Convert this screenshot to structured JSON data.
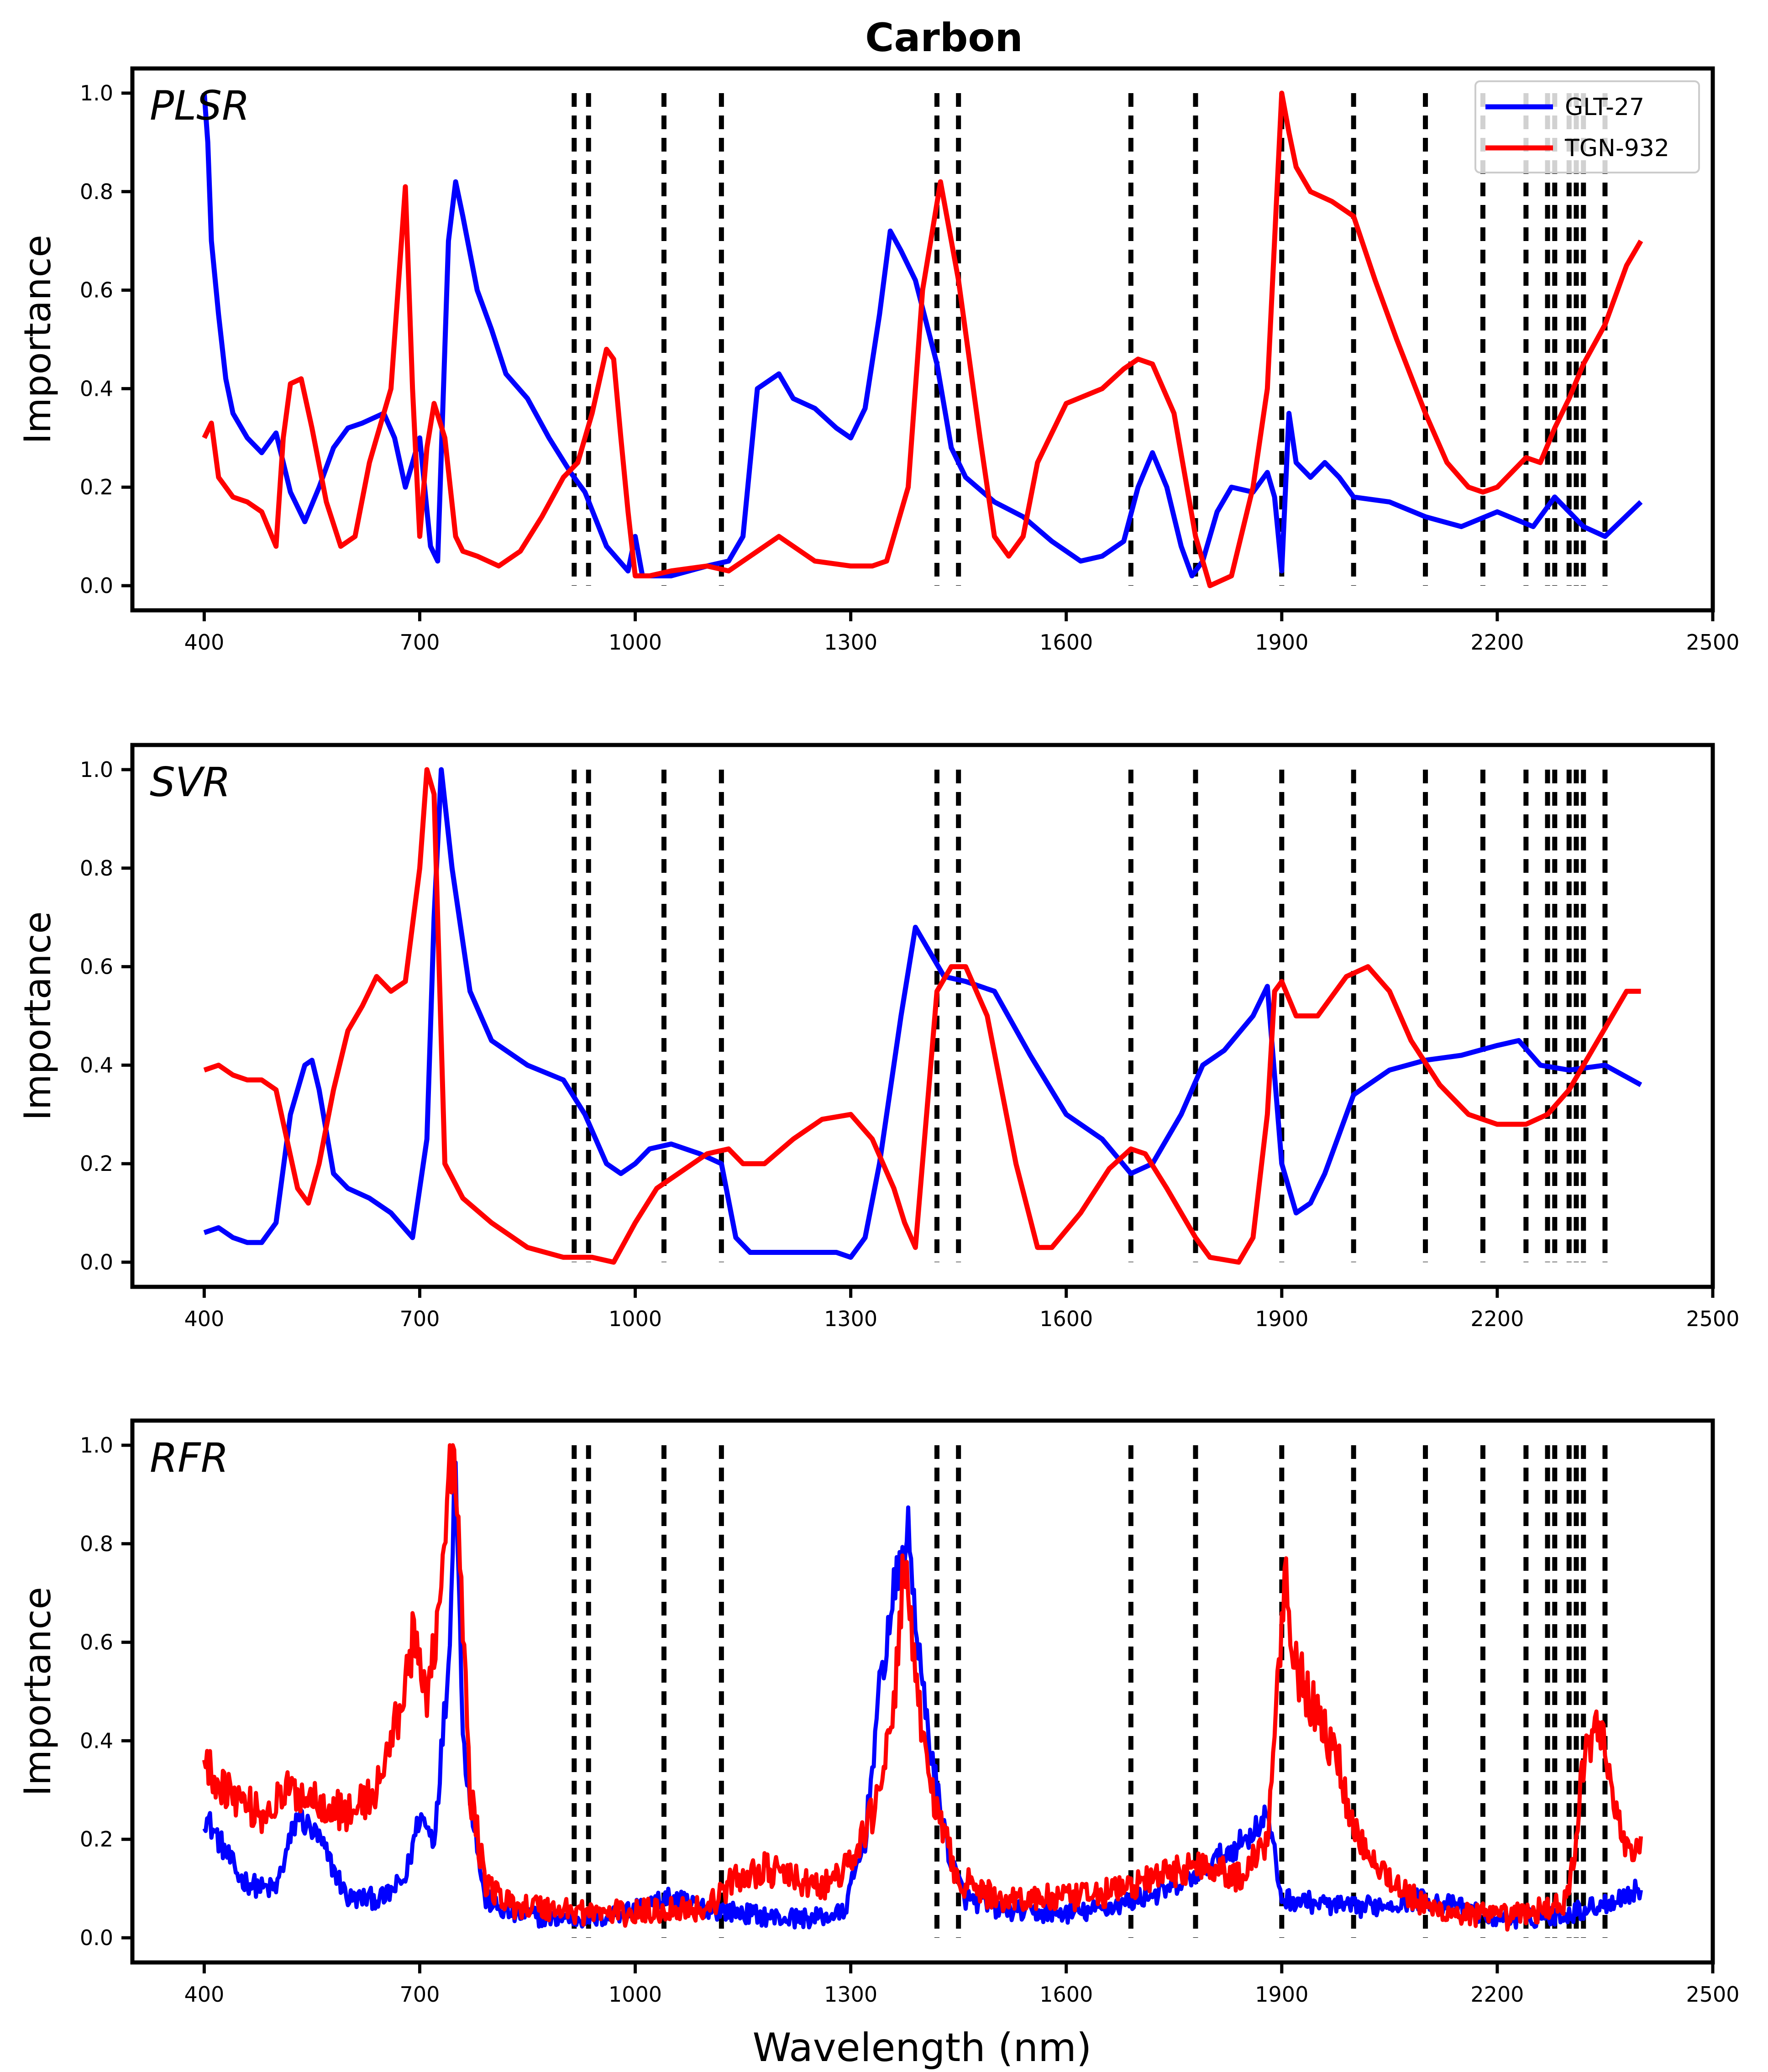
{
  "chart_data": {
    "title": "Carbon",
    "xlabel": "Wavelength (nm)",
    "ylabel": "Importance",
    "xlim": [
      300,
      2500
    ],
    "ylim": [
      -0.05,
      1.05
    ],
    "xticks": [
      400,
      700,
      1000,
      1300,
      1600,
      1900,
      2200,
      2500
    ],
    "yticks": [
      0.0,
      0.2,
      0.4,
      0.6,
      0.8,
      1.0
    ],
    "ytick_labels": [
      "0.0",
      "0.2",
      "0.4",
      "0.6",
      "0.8",
      "1.0"
    ],
    "vlines": [
      915,
      935,
      1040,
      1120,
      1420,
      1450,
      1690,
      1780,
      1900,
      2000,
      2100,
      2180,
      2240,
      2270,
      2280,
      2300,
      2310,
      2320,
      2350
    ],
    "legend": {
      "placement": "top-right",
      "entries": [
        {
          "name": "GLT-27",
          "color": "#0000ff"
        },
        {
          "name": "TGN-932",
          "color": "#ff0000"
        }
      ]
    },
    "panels": [
      {
        "label": "PLSR",
        "show_legend": true,
        "series": [
          {
            "name": "GLT-27",
            "color": "#0000ff",
            "x": [
              400,
              405,
              410,
              420,
              430,
              440,
              460,
              480,
              500,
              510,
              520,
              540,
              560,
              580,
              600,
              620,
              650,
              665,
              680,
              700,
              715,
              725,
              740,
              750,
              760,
              780,
              800,
              820,
              850,
              880,
              910,
              930,
              960,
              990,
              1000,
              1010,
              1050,
              1100,
              1130,
              1150,
              1170,
              1200,
              1220,
              1250,
              1280,
              1300,
              1320,
              1340,
              1355,
              1370,
              1390,
              1420,
              1440,
              1460,
              1500,
              1540,
              1580,
              1620,
              1650,
              1680,
              1700,
              1720,
              1740,
              1760,
              1775,
              1790,
              1810,
              1830,
              1860,
              1880,
              1890,
              1900,
              1910,
              1920,
              1940,
              1960,
              1980,
              2000,
              2050,
              2100,
              2150,
              2200,
              2250,
              2280,
              2300,
              2320,
              2350,
              2400
            ],
            "y": [
              1.0,
              0.9,
              0.7,
              0.55,
              0.42,
              0.35,
              0.3,
              0.27,
              0.31,
              0.25,
              0.19,
              0.13,
              0.2,
              0.28,
              0.32,
              0.33,
              0.35,
              0.3,
              0.2,
              0.3,
              0.08,
              0.05,
              0.7,
              0.82,
              0.75,
              0.6,
              0.52,
              0.43,
              0.38,
              0.3,
              0.23,
              0.19,
              0.08,
              0.03,
              0.1,
              0.02,
              0.02,
              0.04,
              0.05,
              0.1,
              0.4,
              0.43,
              0.38,
              0.36,
              0.32,
              0.3,
              0.36,
              0.55,
              0.72,
              0.68,
              0.62,
              0.45,
              0.28,
              0.22,
              0.17,
              0.14,
              0.09,
              0.05,
              0.06,
              0.09,
              0.2,
              0.27,
              0.2,
              0.08,
              0.02,
              0.05,
              0.15,
              0.2,
              0.19,
              0.23,
              0.18,
              0.03,
              0.35,
              0.25,
              0.22,
              0.25,
              0.22,
              0.18,
              0.17,
              0.14,
              0.12,
              0.15,
              0.12,
              0.18,
              0.15,
              0.12,
              0.1,
              0.17
            ]
          },
          {
            "name": "TGN-932",
            "color": "#ff0000",
            "x": [
              400,
              410,
              420,
              440,
              460,
              480,
              500,
              510,
              520,
              535,
              550,
              570,
              590,
              610,
              630,
              660,
              680,
              690,
              700,
              710,
              720,
              735,
              750,
              760,
              780,
              810,
              840,
              870,
              900,
              920,
              940,
              960,
              970,
              980,
              990,
              1000,
              1010,
              1020,
              1050,
              1100,
              1130,
              1150,
              1200,
              1250,
              1300,
              1330,
              1350,
              1380,
              1400,
              1425,
              1450,
              1480,
              1500,
              1520,
              1540,
              1560,
              1600,
              1650,
              1680,
              1700,
              1720,
              1750,
              1780,
              1800,
              1830,
              1860,
              1880,
              1900,
              1910,
              1920,
              1940,
              1970,
              2000,
              2030,
              2060,
              2100,
              2130,
              2160,
              2180,
              2200,
              2220,
              2240,
              2260,
              2280,
              2300,
              2320,
              2350,
              2380,
              2400
            ],
            "y": [
              0.3,
              0.33,
              0.22,
              0.18,
              0.17,
              0.15,
              0.08,
              0.3,
              0.41,
              0.42,
              0.32,
              0.17,
              0.08,
              0.1,
              0.25,
              0.4,
              0.81,
              0.4,
              0.1,
              0.28,
              0.37,
              0.3,
              0.1,
              0.07,
              0.06,
              0.04,
              0.07,
              0.14,
              0.22,
              0.25,
              0.35,
              0.48,
              0.46,
              0.3,
              0.15,
              0.02,
              0.02,
              0.02,
              0.03,
              0.04,
              0.03,
              0.05,
              0.1,
              0.05,
              0.04,
              0.04,
              0.05,
              0.2,
              0.6,
              0.82,
              0.62,
              0.3,
              0.1,
              0.06,
              0.1,
              0.25,
              0.37,
              0.4,
              0.44,
              0.46,
              0.45,
              0.35,
              0.1,
              0.0,
              0.02,
              0.2,
              0.4,
              1.0,
              0.92,
              0.85,
              0.8,
              0.78,
              0.75,
              0.62,
              0.5,
              0.35,
              0.25,
              0.2,
              0.19,
              0.2,
              0.23,
              0.26,
              0.25,
              0.32,
              0.38,
              0.45,
              0.53,
              0.65,
              0.7
            ]
          }
        ]
      },
      {
        "label": "SVR",
        "show_legend": false,
        "series": [
          {
            "name": "GLT-27",
            "color": "#0000ff",
            "x": [
              400,
              420,
              440,
              460,
              480,
              500,
              520,
              540,
              550,
              560,
              580,
              600,
              630,
              660,
              690,
              710,
              720,
              730,
              745,
              770,
              800,
              850,
              900,
              930,
              960,
              980,
              1000,
              1020,
              1050,
              1090,
              1120,
              1140,
              1160,
              1200,
              1250,
              1280,
              1300,
              1320,
              1340,
              1370,
              1390,
              1410,
              1430,
              1460,
              1500,
              1550,
              1600,
              1650,
              1690,
              1720,
              1760,
              1790,
              1820,
              1860,
              1880,
              1900,
              1920,
              1940,
              1960,
              2000,
              2050,
              2100,
              2150,
              2200,
              2230,
              2260,
              2300,
              2350,
              2400
            ],
            "y": [
              0.06,
              0.07,
              0.05,
              0.04,
              0.04,
              0.08,
              0.3,
              0.4,
              0.41,
              0.35,
              0.18,
              0.15,
              0.13,
              0.1,
              0.05,
              0.25,
              0.7,
              1.0,
              0.8,
              0.55,
              0.45,
              0.4,
              0.37,
              0.3,
              0.2,
              0.18,
              0.2,
              0.23,
              0.24,
              0.22,
              0.2,
              0.05,
              0.02,
              0.02,
              0.02,
              0.02,
              0.01,
              0.05,
              0.2,
              0.5,
              0.68,
              0.63,
              0.58,
              0.57,
              0.55,
              0.42,
              0.3,
              0.25,
              0.18,
              0.2,
              0.3,
              0.4,
              0.43,
              0.5,
              0.56,
              0.2,
              0.1,
              0.12,
              0.18,
              0.34,
              0.39,
              0.41,
              0.42,
              0.44,
              0.45,
              0.4,
              0.39,
              0.4,
              0.36
            ]
          },
          {
            "name": "TGN-932",
            "color": "#ff0000",
            "x": [
              400,
              420,
              440,
              460,
              480,
              500,
              515,
              530,
              545,
              560,
              580,
              600,
              620,
              640,
              660,
              680,
              700,
              710,
              720,
              735,
              760,
              800,
              850,
              900,
              940,
              970,
              1000,
              1030,
              1060,
              1100,
              1130,
              1150,
              1180,
              1220,
              1260,
              1300,
              1330,
              1360,
              1375,
              1390,
              1420,
              1440,
              1460,
              1490,
              1530,
              1560,
              1580,
              1620,
              1660,
              1690,
              1710,
              1740,
              1780,
              1800,
              1840,
              1860,
              1880,
              1890,
              1900,
              1920,
              1950,
              1990,
              2020,
              2050,
              2080,
              2120,
              2160,
              2200,
              2240,
              2270,
              2300,
              2340,
              2380,
              2400
            ],
            "y": [
              0.39,
              0.4,
              0.38,
              0.37,
              0.37,
              0.35,
              0.25,
              0.15,
              0.12,
              0.2,
              0.35,
              0.47,
              0.52,
              0.58,
              0.55,
              0.57,
              0.8,
              1.0,
              0.95,
              0.2,
              0.13,
              0.08,
              0.03,
              0.01,
              0.01,
              0.0,
              0.08,
              0.15,
              0.18,
              0.22,
              0.23,
              0.2,
              0.2,
              0.25,
              0.29,
              0.3,
              0.25,
              0.15,
              0.08,
              0.03,
              0.55,
              0.6,
              0.6,
              0.5,
              0.2,
              0.03,
              0.03,
              0.1,
              0.19,
              0.23,
              0.22,
              0.15,
              0.05,
              0.01,
              0.0,
              0.05,
              0.3,
              0.55,
              0.57,
              0.5,
              0.5,
              0.58,
              0.6,
              0.55,
              0.45,
              0.36,
              0.3,
              0.28,
              0.28,
              0.3,
              0.35,
              0.45,
              0.55,
              0.55
            ]
          }
        ]
      },
      {
        "label": "RFR",
        "show_legend": false,
        "noise": [
          0.045,
          0.06
        ],
        "series": [
          {
            "name": "GLT-27",
            "color": "#0000ff",
            "x": [
              400,
              420,
              450,
              480,
              500,
              530,
              560,
              600,
              650,
              680,
              700,
              720,
              740,
              750,
              760,
              790,
              820,
              880,
              950,
              1000,
              1050,
              1100,
              1150,
              1200,
              1250,
              1290,
              1320,
              1340,
              1360,
              1380,
              1400,
              1420,
              1440,
              1460,
              1500,
              1560,
              1620,
              1680,
              1700,
              1750,
              1800,
              1850,
              1880,
              1900,
              1950,
              2000,
              2050,
              2100,
              2150,
              2200,
              2250,
              2300,
              2350,
              2400
            ],
            "y": [
              0.25,
              0.2,
              0.12,
              0.1,
              0.1,
              0.25,
              0.2,
              0.08,
              0.08,
              0.12,
              0.25,
              0.2,
              0.55,
              1.0,
              0.4,
              0.08,
              0.05,
              0.04,
              0.04,
              0.06,
              0.08,
              0.06,
              0.05,
              0.04,
              0.04,
              0.05,
              0.2,
              0.5,
              0.7,
              0.82,
              0.5,
              0.3,
              0.15,
              0.08,
              0.06,
              0.05,
              0.05,
              0.07,
              0.08,
              0.1,
              0.15,
              0.2,
              0.25,
              0.08,
              0.07,
              0.06,
              0.07,
              0.08,
              0.06,
              0.04,
              0.04,
              0.05,
              0.07,
              0.1
            ]
          },
          {
            "name": "TGN-932",
            "color": "#ff0000",
            "x": [
              400,
              420,
              450,
              480,
              520,
              560,
              600,
              640,
              670,
              690,
              710,
              730,
              745,
              755,
              770,
              790,
              820,
              880,
              950,
              1000,
              1050,
              1100,
              1140,
              1180,
              1220,
              1260,
              1300,
              1330,
              1360,
              1375,
              1390,
              1420,
              1450,
              1500,
              1560,
              1620,
              1680,
              1720,
              1760,
              1800,
              1840,
              1880,
              1895,
              1905,
              1920,
              1950,
              1980,
              2000,
              2050,
              2100,
              2150,
              2200,
              2250,
              2300,
              2320,
              2340,
              2360,
              2380,
              2400
            ],
            "y": [
              0.35,
              0.32,
              0.28,
              0.25,
              0.3,
              0.28,
              0.25,
              0.3,
              0.45,
              0.6,
              0.5,
              0.7,
              1.0,
              0.8,
              0.3,
              0.12,
              0.07,
              0.06,
              0.05,
              0.05,
              0.06,
              0.06,
              0.12,
              0.14,
              0.12,
              0.1,
              0.15,
              0.25,
              0.45,
              0.8,
              0.5,
              0.25,
              0.12,
              0.08,
              0.08,
              0.08,
              0.1,
              0.12,
              0.14,
              0.15,
              0.12,
              0.2,
              0.55,
              0.75,
              0.55,
              0.45,
              0.35,
              0.22,
              0.12,
              0.06,
              0.05,
              0.04,
              0.05,
              0.08,
              0.35,
              0.45,
              0.3,
              0.18,
              0.18
            ]
          }
        ]
      }
    ]
  }
}
